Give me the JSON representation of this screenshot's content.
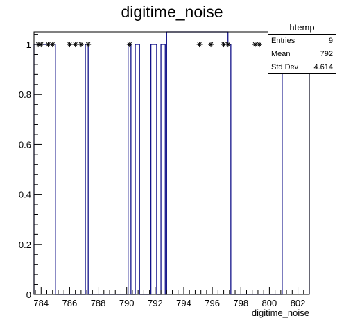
{
  "chart_data": {
    "type": "histogram",
    "title": "digitime_noise",
    "xlabel": "digitime_noise",
    "ylabel": "",
    "xlim": [
      783.5,
      802.8
    ],
    "ylim": [
      0,
      1.05
    ],
    "x_ticks": [
      784,
      786,
      788,
      790,
      792,
      794,
      796,
      798,
      800,
      802
    ],
    "y_ticks": [
      0,
      0.2,
      0.4,
      0.6,
      0.8,
      1
    ],
    "y_tick_labels": [
      "0",
      "0.2",
      "0.4",
      "0.6",
      "0.8",
      "1"
    ],
    "line_color": "#000080",
    "bins": [
      {
        "lo": 783.5,
        "hi": 785.0,
        "value": 1
      },
      {
        "lo": 785.0,
        "hi": 787.1,
        "value": 0
      },
      {
        "lo": 787.1,
        "hi": 787.3,
        "value": 1
      },
      {
        "lo": 787.3,
        "hi": 790.1,
        "value": 0
      },
      {
        "lo": 790.1,
        "hi": 790.3,
        "value": 1
      },
      {
        "lo": 790.3,
        "hi": 790.6,
        "value": 0
      },
      {
        "lo": 790.6,
        "hi": 790.9,
        "value": 1
      },
      {
        "lo": 790.9,
        "hi": 791.7,
        "value": 0
      },
      {
        "lo": 791.7,
        "hi": 792.1,
        "value": 1
      },
      {
        "lo": 792.1,
        "hi": 792.4,
        "value": 0
      },
      {
        "lo": 792.4,
        "hi": 792.7,
        "value": 1
      },
      {
        "lo": 792.7,
        "hi": 792.8,
        "value": 0
      },
      {
        "lo": 792.8,
        "hi": 793.0,
        "value": 1.05
      },
      {
        "lo": 793.0,
        "hi": 797.1,
        "value": 1.05
      },
      {
        "lo": 797.1,
        "hi": 797.3,
        "value": 1
      },
      {
        "lo": 797.3,
        "hi": 800.9,
        "value": 0
      },
      {
        "lo": 800.9,
        "hi": 801.1,
        "value": 1.05
      },
      {
        "lo": 801.1,
        "hi": 802.8,
        "value": 1.05
      }
    ],
    "markers": [
      {
        "x": 783.8,
        "y": 1
      },
      {
        "x": 784.0,
        "y": 1
      },
      {
        "x": 784.5,
        "y": 1
      },
      {
        "x": 784.8,
        "y": 1
      },
      {
        "x": 786.0,
        "y": 1
      },
      {
        "x": 786.4,
        "y": 1
      },
      {
        "x": 786.8,
        "y": 1
      },
      {
        "x": 787.3,
        "y": 1
      },
      {
        "x": 790.2,
        "y": 1
      },
      {
        "x": 795.1,
        "y": 1
      },
      {
        "x": 795.9,
        "y": 1
      },
      {
        "x": 796.8,
        "y": 1
      },
      {
        "x": 797.1,
        "y": 1
      },
      {
        "x": 799.0,
        "y": 1
      },
      {
        "x": 799.3,
        "y": 1
      },
      {
        "x": 801.0,
        "y": 1
      }
    ],
    "stats": {
      "name": "htemp",
      "rows": [
        {
          "label": "Entries",
          "value": "9"
        },
        {
          "label": "Mean",
          "value": "792"
        },
        {
          "label": "Std Dev",
          "value": "4.614"
        }
      ]
    }
  }
}
